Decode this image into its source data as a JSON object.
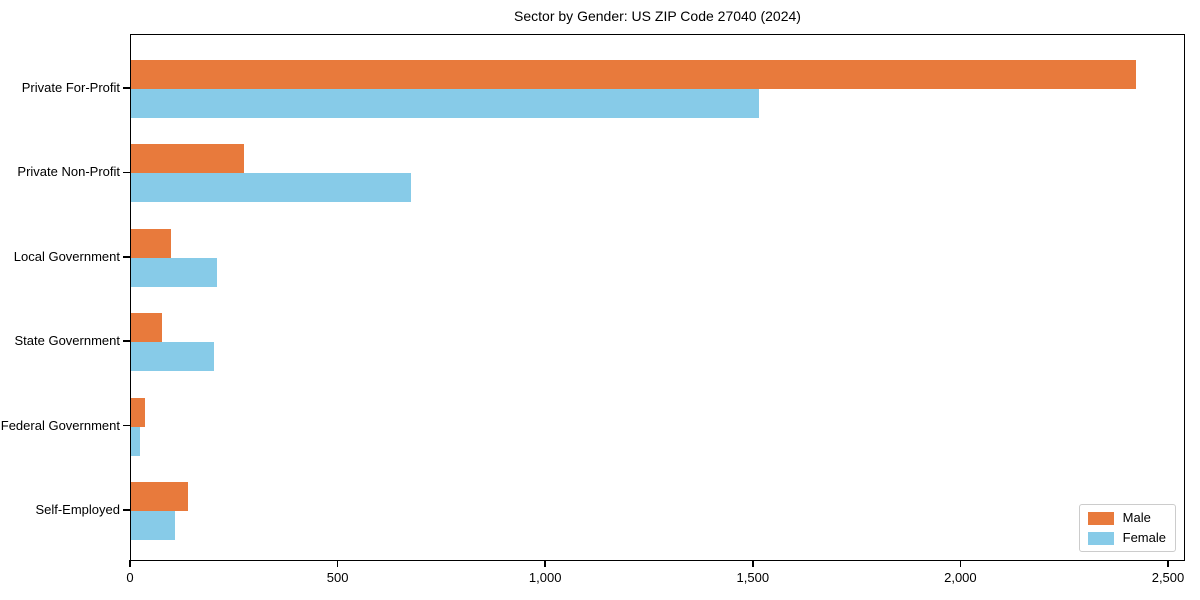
{
  "chart_data": {
    "type": "bar",
    "orientation": "horizontal",
    "title": "Sector by Gender: US ZIP Code 27040 (2024)",
    "categories": [
      "Private For-Profit",
      "Private Non-Profit",
      "Local Government",
      "State Government",
      "Federal Government",
      "Self-Employed"
    ],
    "series": [
      {
        "name": "Male",
        "color": "#E87A3C",
        "values": [
          2420,
          271,
          96,
          75,
          34,
          136
        ]
      },
      {
        "name": "Female",
        "color": "#87CBE8",
        "values": [
          1512,
          674,
          206,
          200,
          22,
          107
        ]
      }
    ],
    "xlabel": "",
    "ylabel": "",
    "xlim": [
      0,
      2541
    ],
    "xticks": [
      0,
      500,
      1000,
      1500,
      2000,
      2500
    ],
    "xtick_labels": [
      "0",
      "500",
      "1,000",
      "1,500",
      "2,000",
      "2,500"
    ],
    "legend_position": "lower right",
    "grid": false,
    "axis_color": "#000000",
    "background_color": "#ffffff"
  }
}
